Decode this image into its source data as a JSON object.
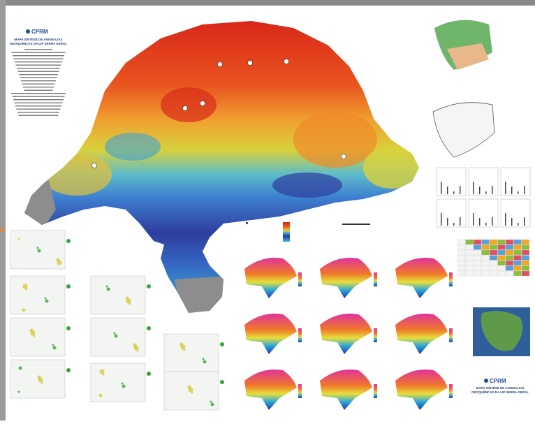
{
  "header": {
    "logo": "CPRM",
    "title_line1": "MAPA SÍNTESE DE ANOMALIAS",
    "title_line2": "GEOQUÍMICAS DA LIP SERRA GERAL"
  },
  "footer": {
    "logo": "CPRM",
    "title_line1": "MAPA SÍNTESE DE ANOMALIAS",
    "title_line2": "GEOQUÍMICAS DA LIP SERRA GERAL"
  }
}
